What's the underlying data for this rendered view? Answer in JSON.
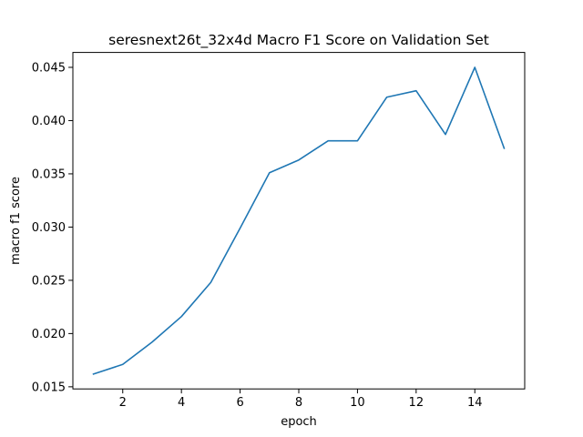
{
  "chart_data": {
    "type": "line",
    "title": "seresnext26t_32x4d Macro F1 Score on Validation Set",
    "xlabel": "epoch",
    "ylabel": "macro f1 score",
    "xlim": [
      0.3,
      15.7
    ],
    "ylim": [
      0.0148,
      0.0464
    ],
    "x_ticks": [
      2,
      4,
      6,
      8,
      10,
      12,
      14
    ],
    "x_tick_labels": [
      "2",
      "4",
      "6",
      "8",
      "10",
      "12",
      "14"
    ],
    "y_ticks": [
      0.015,
      0.02,
      0.025,
      0.03,
      0.035,
      0.04,
      0.045
    ],
    "y_tick_labels": [
      "0.015",
      "0.020",
      "0.025",
      "0.030",
      "0.035",
      "0.040",
      "0.045"
    ],
    "grid": false,
    "series": [
      {
        "color": "#1f77b4",
        "x": [
          1,
          2,
          3,
          4,
          5,
          6,
          7,
          8,
          9,
          10,
          11,
          12,
          13,
          14,
          15
        ],
        "y": [
          0.0162,
          0.0171,
          0.0192,
          0.0216,
          0.0248,
          0.0299,
          0.0351,
          0.0363,
          0.0381,
          0.0381,
          0.0422,
          0.0428,
          0.0387,
          0.045,
          0.0374
        ]
      }
    ]
  }
}
